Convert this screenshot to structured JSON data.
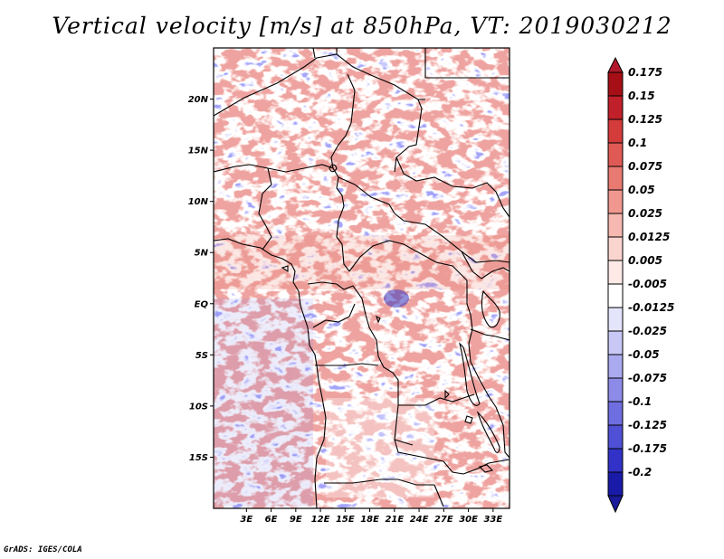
{
  "title": "Vertical velocity [m/s] at 850hPa, VT: 2019030212",
  "credit": "GrADS: IGES/COLA",
  "map": {
    "lon_range": [
      -1,
      35
    ],
    "lat_range": [
      -20,
      25
    ],
    "lat_ticks": [
      {
        "value": 20,
        "label": "20N"
      },
      {
        "value": 15,
        "label": "15N"
      },
      {
        "value": 10,
        "label": "10N"
      },
      {
        "value": 5,
        "label": "5N"
      },
      {
        "value": 0,
        "label": "EQ"
      },
      {
        "value": -5,
        "label": "5S"
      },
      {
        "value": -10,
        "label": "10S"
      },
      {
        "value": -15,
        "label": "15S"
      }
    ],
    "lon_ticks": [
      {
        "value": 3,
        "label": "3E"
      },
      {
        "value": 6,
        "label": "6E"
      },
      {
        "value": 9,
        "label": "9E"
      },
      {
        "value": 12,
        "label": "12E"
      },
      {
        "value": 15,
        "label": "15E"
      },
      {
        "value": 18,
        "label": "18E"
      },
      {
        "value": 21,
        "label": "21E"
      },
      {
        "value": 24,
        "label": "24E"
      },
      {
        "value": 27,
        "label": "27E"
      },
      {
        "value": 30,
        "label": "30E"
      },
      {
        "value": 33,
        "label": "33E"
      }
    ]
  },
  "colorbar": {
    "levels": [
      {
        "label": "0.175",
        "color": "#a50f15"
      },
      {
        "label": "0.15",
        "color": "#c0202a"
      },
      {
        "label": "0.125",
        "color": "#d43b3b"
      },
      {
        "label": "0.1",
        "color": "#e05a55"
      },
      {
        "label": "0.075",
        "color": "#e87a72"
      },
      {
        "label": "0.05",
        "color": "#f09890"
      },
      {
        "label": "0.025",
        "color": "#f6b8b0"
      },
      {
        "label": "0.0125",
        "color": "#fad4ce"
      },
      {
        "label": "0.005",
        "color": "#fdeae6"
      },
      {
        "label": "-0.005",
        "color": "#ffffff"
      },
      {
        "label": "-0.0125",
        "color": "#e4e4fb"
      },
      {
        "label": "-0.025",
        "color": "#c8c8f6"
      },
      {
        "label": "-0.05",
        "color": "#aaaaf0"
      },
      {
        "label": "-0.075",
        "color": "#8c8ce8"
      },
      {
        "label": "-0.1",
        "color": "#6e6ee0"
      },
      {
        "label": "-0.125",
        "color": "#5050d6"
      },
      {
        "label": "-0.175",
        "color": "#3232c8"
      },
      {
        "label": "-0.2",
        "color": "#1a1aa8"
      }
    ],
    "top_arrow_color": "#b2182b",
    "bottom_arrow_color": "#1a1a9a"
  }
}
